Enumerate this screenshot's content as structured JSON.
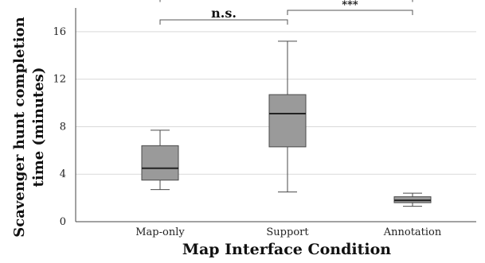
{
  "chart_data": {
    "type": "box",
    "title": "",
    "xlabel": "Map Interface Condition",
    "ylabel_line1": "Scavenger hunt completion",
    "ylabel_line2": "time (minutes)",
    "ylim": [
      0,
      18
    ],
    "yticks": [
      0,
      4,
      8,
      12,
      16
    ],
    "grid": true,
    "categories": [
      "Map-only",
      "Support",
      "Annotation"
    ],
    "boxes": [
      {
        "category": "Map-only",
        "min": 2.7,
        "q1": 3.5,
        "median": 4.5,
        "q3": 6.4,
        "max": 7.7
      },
      {
        "category": "Support",
        "min": 2.5,
        "q1": 6.3,
        "median": 9.1,
        "q3": 10.7,
        "max": 15.2
      },
      {
        "category": "Annotation",
        "min": 1.3,
        "q1": 1.6,
        "median": 1.8,
        "q3": 2.1,
        "max": 2.4
      }
    ],
    "significance": [
      {
        "from": "Map-only",
        "to": "Annotation",
        "label": "*",
        "y": 18.9
      },
      {
        "from": "Map-only",
        "to": "Support",
        "label": "n.s.",
        "y": 17.0
      },
      {
        "from": "Support",
        "to": "Annotation",
        "label": "***",
        "y": 17.8
      }
    ],
    "colors": {
      "box_fill": "#9a9a9a",
      "box_stroke": "#4a4a4a",
      "grid": "#d9d9d9",
      "axis": "#444444"
    }
  }
}
